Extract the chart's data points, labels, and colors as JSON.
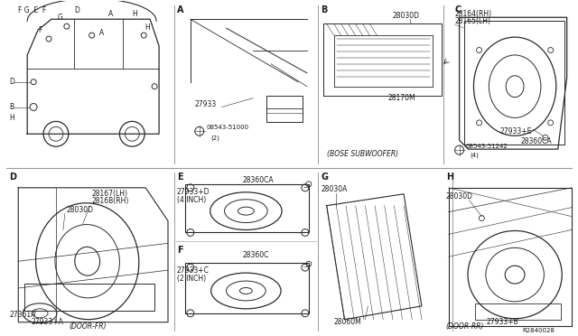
{
  "bg_color": "#ffffff",
  "line_color": "#2a2a2a",
  "text_color": "#1a1a1a",
  "parts": {
    "27933": "27933",
    "08543_51000": "08543-51000\n(2)",
    "28030D_B": "28030D",
    "28170M": "28170M",
    "bose_sub": "(BOSE SUBWOOFER)",
    "28164RH": "28164(RH)",
    "28165LH": "28165(LH)",
    "27933E": "27933+E",
    "28360CA_C": "28360CA",
    "08543_51242": "08543-51242\n(4)",
    "28360CA_E": "28360CA",
    "27933D": "27933+D\n(4 INCH)",
    "28360C": "28360C",
    "27933C": "27933+C\n(2 INCH)",
    "28167LH": "28167(LH)",
    "28168RH": "2816B(RH)",
    "28030D_D": "28030D",
    "27361A": "27361A",
    "27933A": "27933+A",
    "door_fr": "(DOOR-FR)",
    "28030A": "28030A",
    "28060M": "28060M",
    "28030D_H": "28030D",
    "27933B": "27933+B",
    "door_rr": "(DOOR-RR)",
    "R2840028": "R2840028"
  },
  "fs_section": 7,
  "fs_part": 5.5,
  "fs_small": 5
}
